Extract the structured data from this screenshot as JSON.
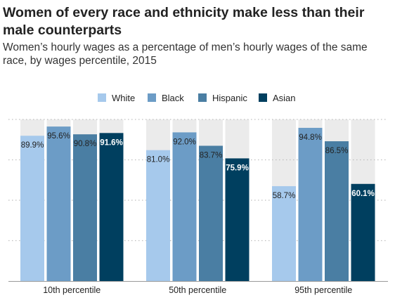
{
  "chart_data": {
    "type": "bar",
    "title": "Women of every race and ethnicity make less than their male counterparts",
    "subtitle": "Women’s hourly wages as a percentage of men’s hourly wages of the same race, by wages percentile, 2015",
    "categories": [
      "10th percentile",
      "50th percentile",
      "95th percentile"
    ],
    "series": [
      {
        "name": "White",
        "values": [
          89.9,
          81.0,
          58.7
        ],
        "labels": [
          "89.9%",
          "81.0%",
          "58.7%"
        ],
        "color": "#a6c9ec",
        "label_color": "#222222",
        "label_bold": false
      },
      {
        "name": "Black",
        "values": [
          95.6,
          92.0,
          94.8
        ],
        "labels": [
          "95.6%",
          "92.0%",
          "94.8%"
        ],
        "color": "#6c9cc6",
        "label_color": "#222222",
        "label_bold": false
      },
      {
        "name": "Hispanic",
        "values": [
          90.8,
          83.7,
          86.5
        ],
        "labels": [
          "90.8%",
          "83.7%",
          "86.5%"
        ],
        "color": "#4a7ea3",
        "label_color": "#222222",
        "label_bold": false
      },
      {
        "name": "Asian",
        "values": [
          91.6,
          75.9,
          60.1
        ],
        "labels": [
          "91.6%",
          "75.9%",
          "60.1%"
        ],
        "color": "#003f5f",
        "label_color": "#ffffff",
        "label_bold": true
      }
    ],
    "xlabel": "",
    "ylabel": "",
    "ylim": [
      0,
      100
    ],
    "grid": true,
    "legend_position": "top-center",
    "background_bar_color": "#ebebeb",
    "gridline_color": "#bfbfbf",
    "axis_color": "#999999"
  }
}
